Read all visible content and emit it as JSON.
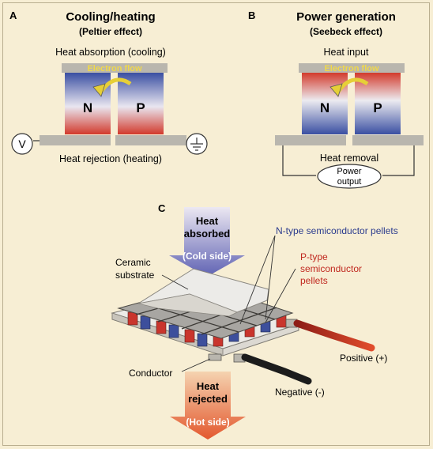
{
  "panels": {
    "a": {
      "letter": "A",
      "title": "Cooling/heating",
      "subtitle": "(Peltier effect)",
      "top_label": "Heat absorption (cooling)",
      "electron_flow": "Electron flow",
      "n_label": "N",
      "p_label": "P",
      "bottom_label": "Heat rejection (heating)",
      "voltage_label": "V"
    },
    "b": {
      "letter": "B",
      "title": "Power generation",
      "subtitle": "(Seebeck effect)",
      "top_label": "Heat input",
      "electron_flow": "Electron flow",
      "n_label": "N",
      "p_label": "P",
      "bottom_label": "Heat removal",
      "output_line1": "Power",
      "output_line2": "output"
    },
    "c": {
      "letter": "C",
      "heat_absorbed_1": "Heat",
      "heat_absorbed_2": "absorbed",
      "cold_side": "(Cold side)",
      "n_pellets": "N-type semiconductor pellets",
      "p_pellets_1": "P-type",
      "p_pellets_2": "semiconductor",
      "p_pellets_3": "pellets",
      "ceramic_1": "Ceramic",
      "ceramic_2": "substrate",
      "conductor": "Conductor",
      "positive": "Positive (+)",
      "negative": "Negative (-)",
      "heat_rejected_1": "Heat",
      "heat_rejected_2": "rejected",
      "hot_side": "(Hot side)"
    }
  },
  "colors": {
    "background": "#f7eed4",
    "n_type": "#3d4f9c",
    "p_type": "#c9352d",
    "electron_flow_text": "#f0d84a",
    "plate_gray": "#b9b6ae",
    "red_label": "#c0281f",
    "blue_label": "#2c3c8e"
  }
}
